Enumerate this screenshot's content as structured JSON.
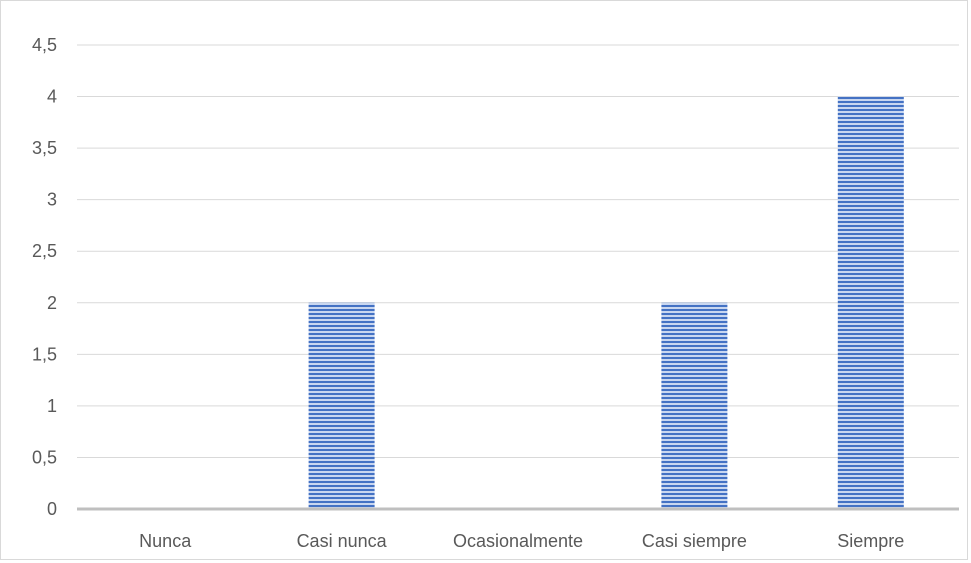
{
  "chart_data": {
    "type": "bar",
    "categories": [
      "Nunca",
      "Casi nunca",
      "Ocasionalmente",
      "Casi siempre",
      "Siempre"
    ],
    "values": [
      0,
      2,
      0,
      2,
      4
    ],
    "ylim": [
      0,
      4.5
    ],
    "yticks": [
      0,
      0.5,
      1,
      1.5,
      2,
      2.5,
      3,
      3.5,
      4,
      4.5
    ],
    "ytick_labels": [
      "0",
      "0,5",
      "1",
      "1,5",
      "2",
      "2,5",
      "3",
      "3,5",
      "4",
      "4,5"
    ],
    "title": "",
    "xlabel": "",
    "ylabel": "",
    "grid": true,
    "legend": "none",
    "colors": {
      "bar": "#4472c4",
      "bar_light": "#c9d7f0",
      "grid": "#d9d9d9",
      "axis": "#bfbfbf",
      "text": "#595959"
    },
    "bar_pattern": "horizontal-stripes"
  }
}
